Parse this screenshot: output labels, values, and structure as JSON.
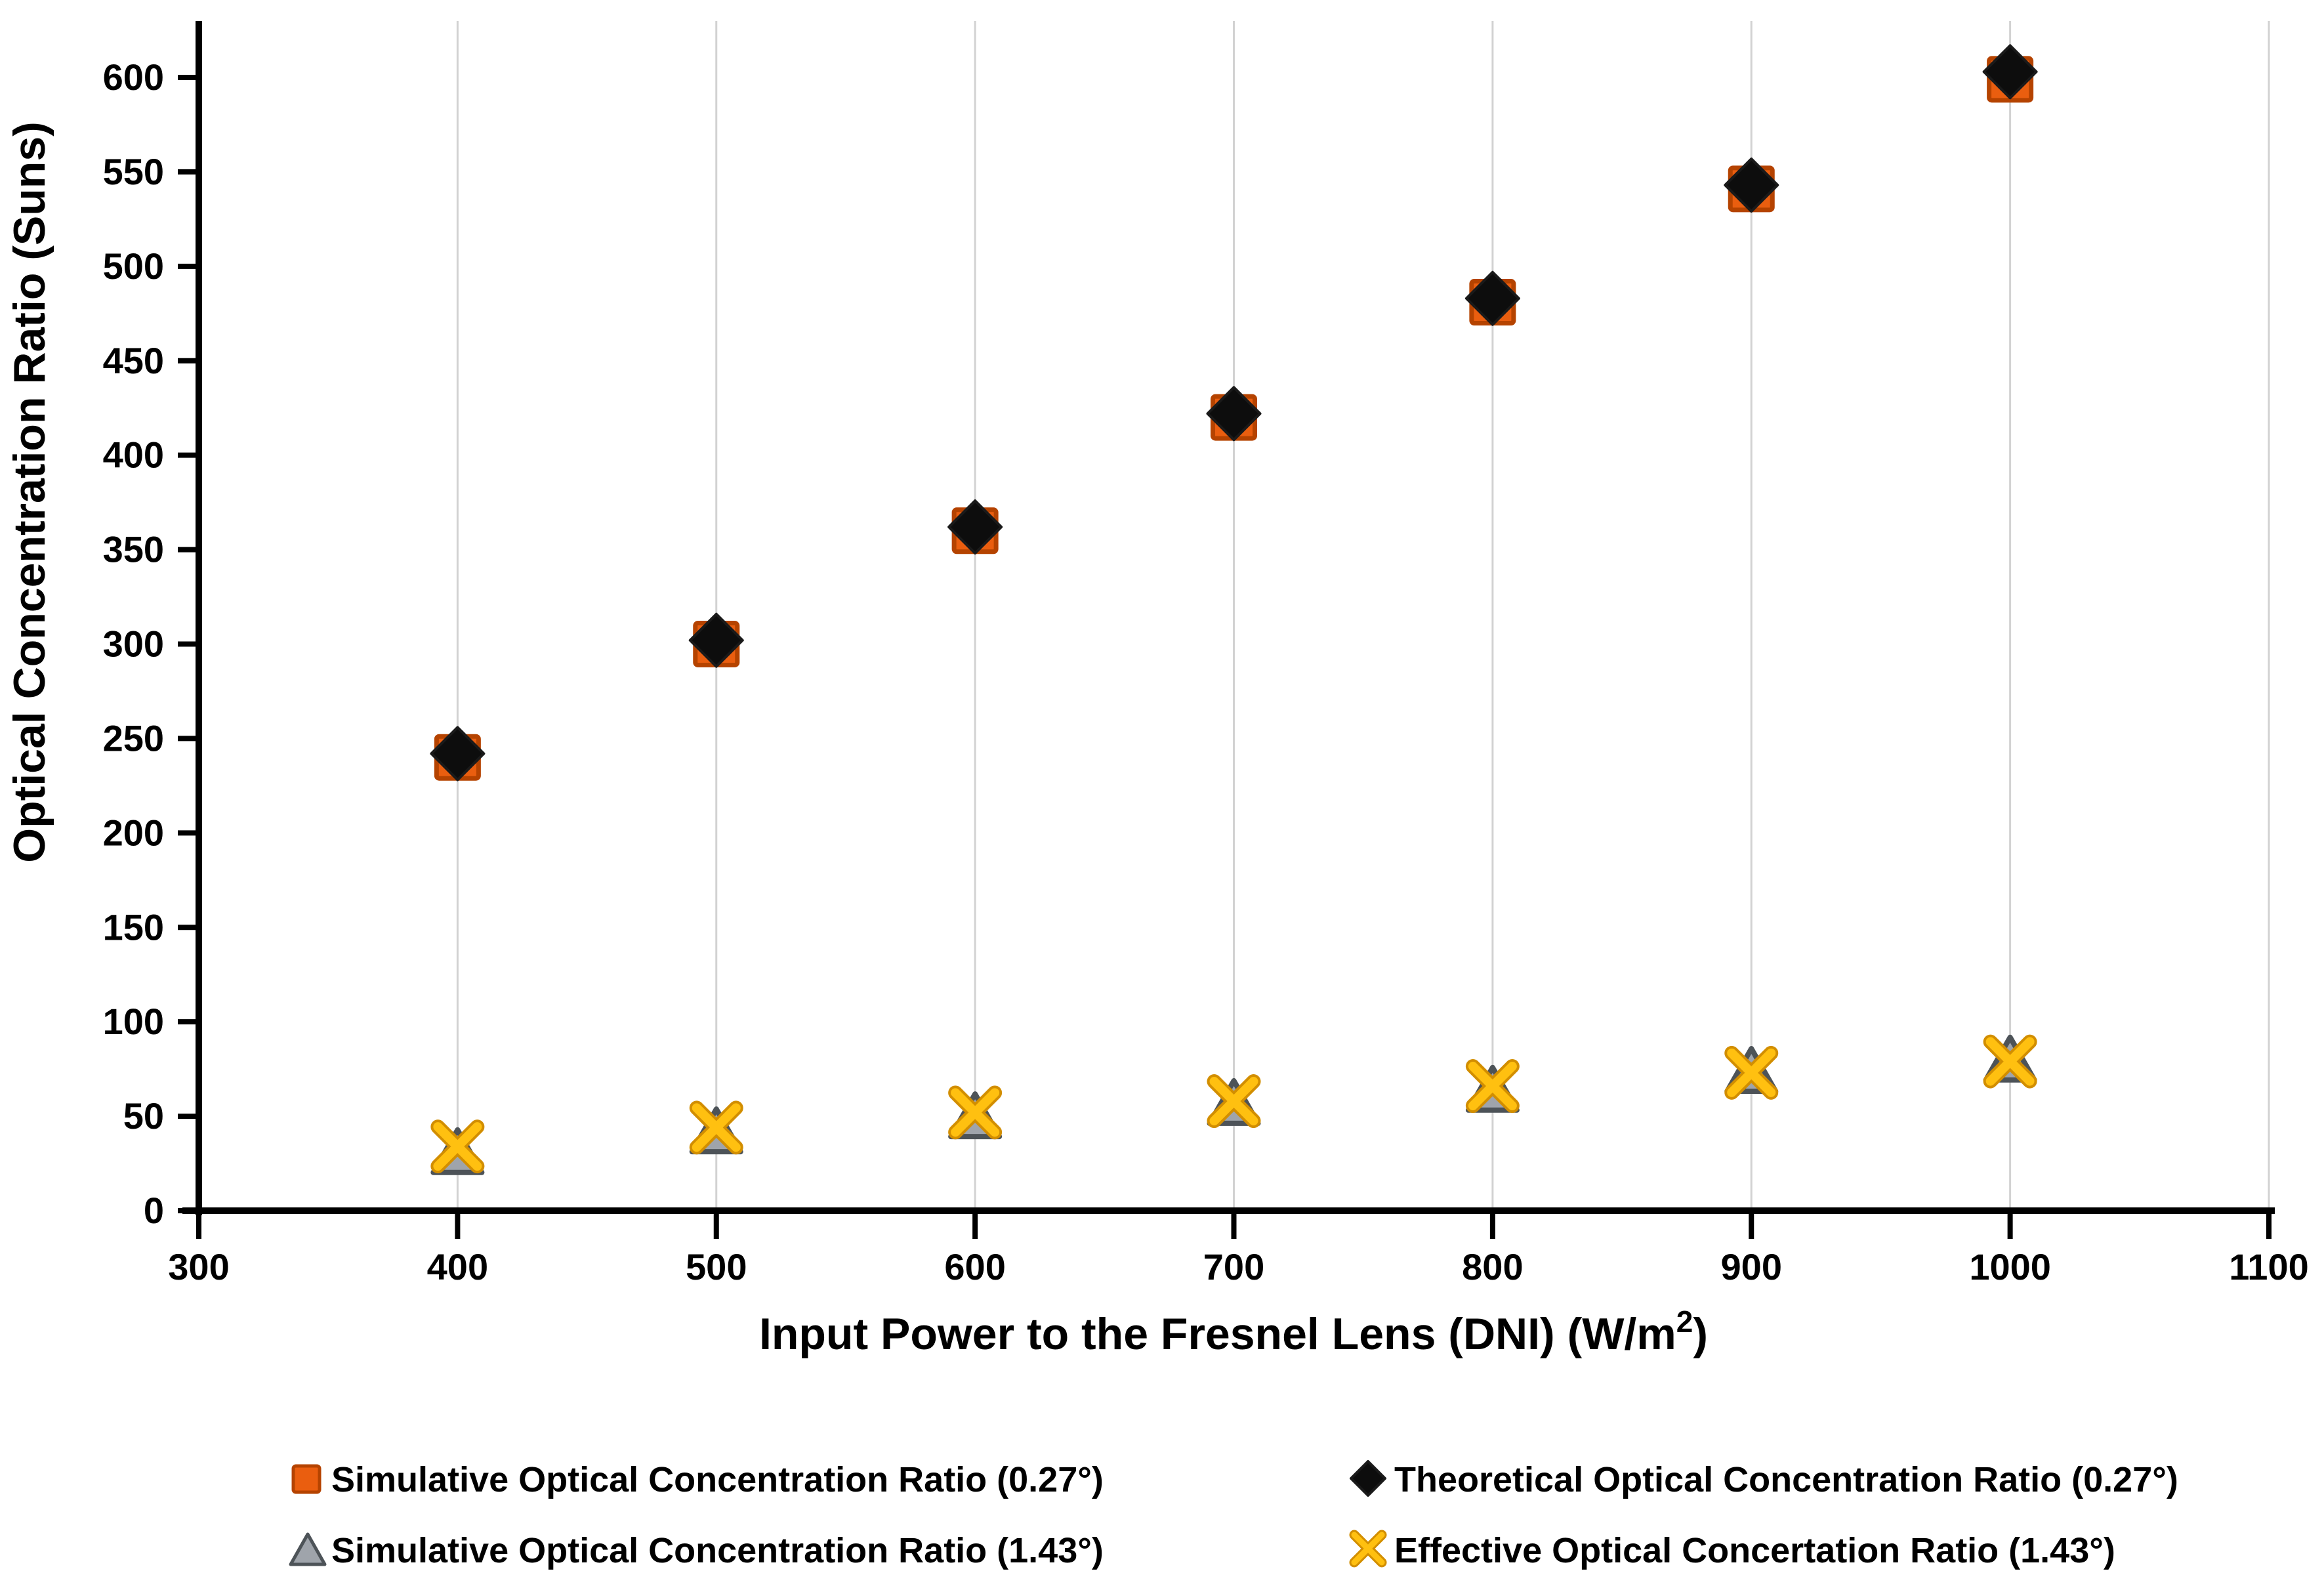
{
  "chart_data": {
    "type": "scatter",
    "title": "",
    "ylabel": "Optical Concentration Ratio (Suns)",
    "xlabel_main": "Input Power to the Fresnel Lens (DNI) (W/m",
    "xlabel_sup": "2",
    "xlabel_close": ")",
    "x": [
      400,
      500,
      600,
      700,
      800,
      900,
      1000
    ],
    "x_ticks": [
      300,
      400,
      500,
      600,
      700,
      800,
      900,
      1000,
      1100
    ],
    "y_ticks": [
      0,
      50,
      100,
      150,
      200,
      250,
      300,
      350,
      400,
      450,
      500,
      550,
      600
    ],
    "xlim": [
      300,
      1100
    ],
    "ylim": [
      0,
      600
    ],
    "grid": "vertical-only",
    "legend_position": "bottom-two-columns",
    "series": [
      {
        "name": "Simulative Optical Concentration Ratio (0.27°)",
        "marker": "square",
        "fill": "#EA5E0F",
        "stroke": "#B54300",
        "values": [
          240,
          300,
          360,
          420,
          481,
          541,
          599
        ]
      },
      {
        "name": "Theoretical Optical Concentration Ratio (0.27°)",
        "marker": "diamond",
        "fill": "#0D0D0D",
        "stroke": "#1A1A1A",
        "values": [
          242,
          302,
          362,
          422,
          483,
          543,
          603
        ]
      },
      {
        "name": "Simulative Optical Concentration Ratio (1.43°)",
        "marker": "triangle",
        "fill": "#9FA4AB",
        "stroke": "#4D5358",
        "values": [
          31,
          42,
          50,
          57,
          64,
          74,
          80
        ]
      },
      {
        "name": "Effective Optical Concertation Ratio (1.43°)",
        "marker": "x",
        "fill": "#FFC010",
        "stroke": "#D28E00",
        "values": [
          34,
          44,
          52,
          58,
          66,
          73,
          79
        ]
      }
    ],
    "colors": {
      "background": "#FFFFFF",
      "grid": "#D2D2D2",
      "axis": "#000000",
      "text": "#000000"
    }
  }
}
